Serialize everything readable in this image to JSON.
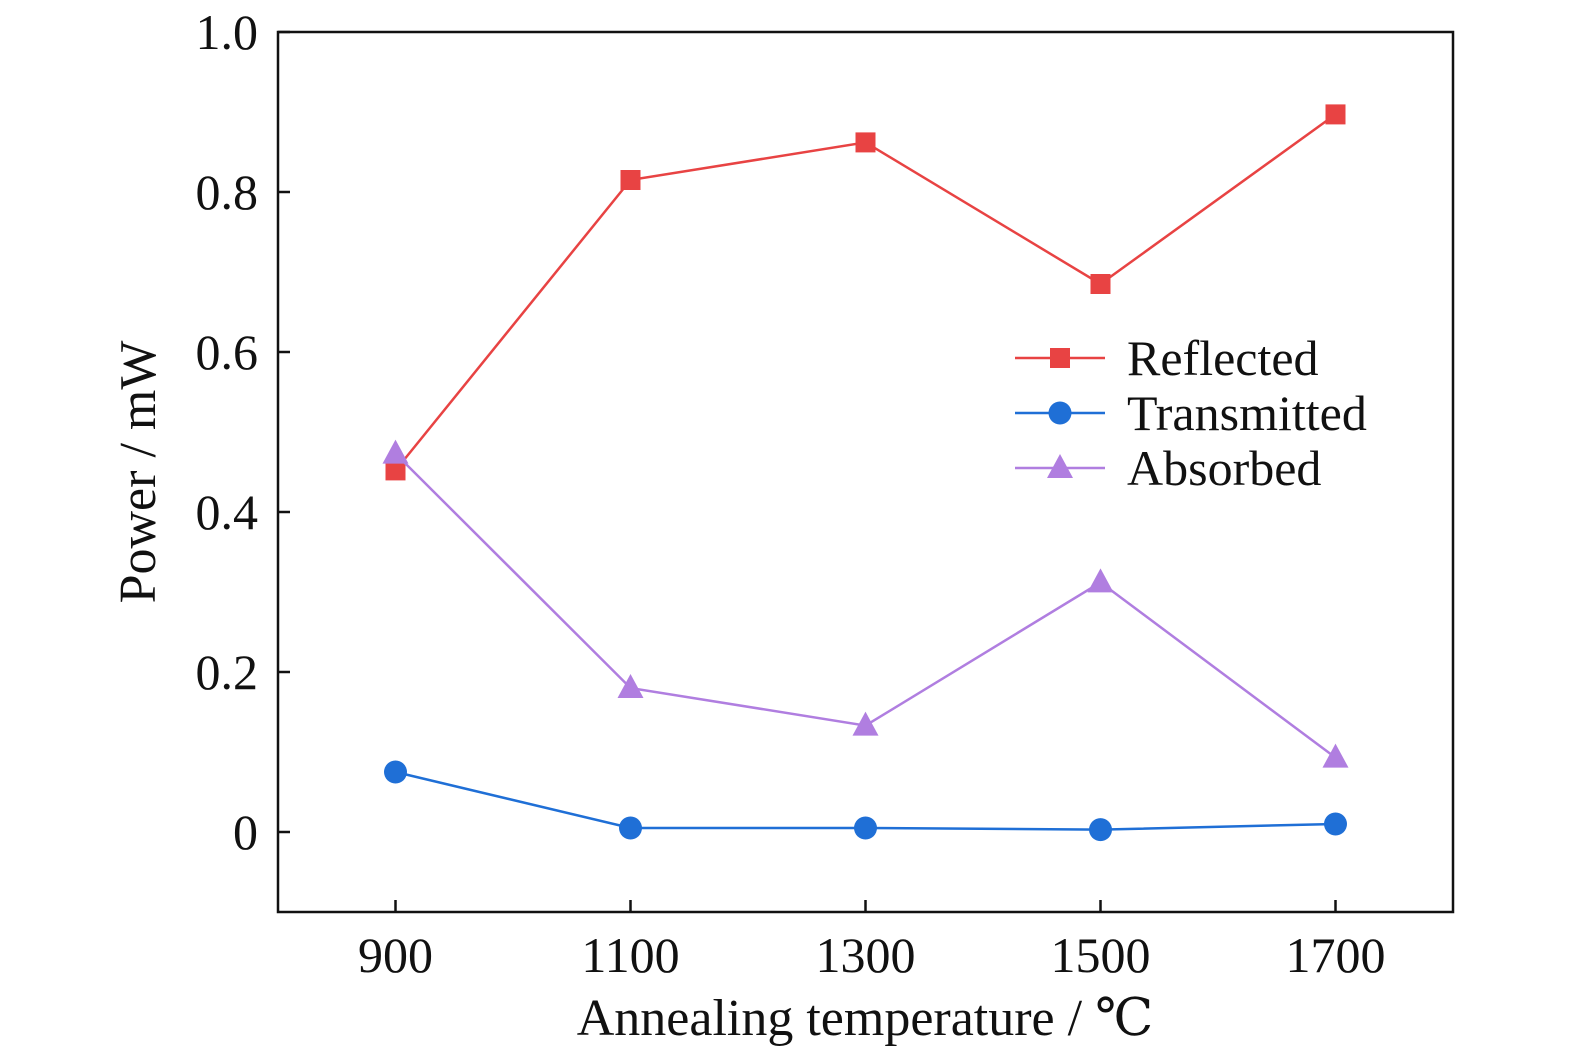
{
  "chart_data": {
    "type": "line",
    "title": "",
    "xlabel": "Annealing temperature / ℃",
    "ylabel": "Power / mW",
    "x": [
      900,
      1100,
      1300,
      1500,
      1700
    ],
    "xlim": [
      800,
      1800
    ],
    "ylim": [
      -0.1,
      1.0
    ],
    "xticks": [
      900,
      1100,
      1300,
      1500,
      1700
    ],
    "xtick_labels": [
      "900",
      "1100",
      "1300",
      "1500",
      "1700"
    ],
    "yticks": [
      0,
      0.2,
      0.4,
      0.6,
      0.8,
      1.0
    ],
    "ytick_labels": [
      "0",
      "0.2",
      "0.4",
      "0.6",
      "0.8",
      "1.0"
    ],
    "grid": false,
    "legend_position": "center-right",
    "series": [
      {
        "name": "Reflected",
        "marker": "square",
        "color": "#e84343",
        "values": [
          0.452,
          0.815,
          0.862,
          0.685,
          0.897
        ]
      },
      {
        "name": "Transmitted",
        "marker": "circle",
        "color": "#1f6fd6",
        "values": [
          0.075,
          0.005,
          0.005,
          0.003,
          0.01
        ]
      },
      {
        "name": "Absorbed",
        "marker": "triangle",
        "color": "#b07ee0",
        "values": [
          0.473,
          0.18,
          0.133,
          0.312,
          0.093
        ]
      }
    ]
  }
}
